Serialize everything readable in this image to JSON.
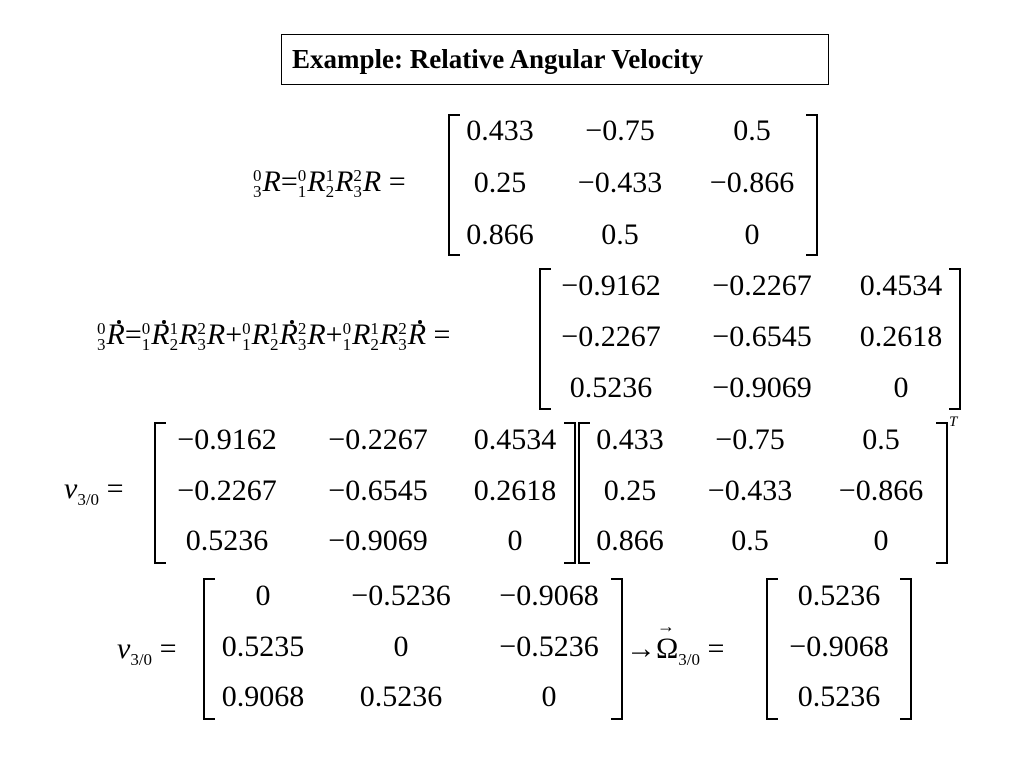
{
  "title": "Example: Relative Angular Velocity",
  "equations": {
    "eq1_lhs": {
      "sym": "R",
      "eq": "=",
      "op": "="
    },
    "eq2_lhs": {
      "sym": "R",
      "plus": "+",
      "eq": "="
    },
    "nu_symbol": "ν",
    "nu_sub": "3/0",
    "omega_symbol": "Ω",
    "omega_sub": "3/0",
    "arrow": "→",
    "transpose": "T"
  },
  "matrices": {
    "R": [
      [
        "0.433",
        "−0.75",
        "0.5"
      ],
      [
        "0.25",
        "−0.433",
        "−0.866"
      ],
      [
        "0.866",
        "0.5",
        "0"
      ]
    ],
    "Rdot": [
      [
        "−0.9162",
        "−0.2267",
        "0.4534"
      ],
      [
        "−0.2267",
        "−0.6545",
        "0.2618"
      ],
      [
        "0.5236",
        "−0.9069",
        "0"
      ]
    ],
    "nu": [
      [
        "0",
        "−0.5236",
        "−0.9068"
      ],
      [
        "0.5235",
        "0",
        "−0.5236"
      ],
      [
        "0.9068",
        "0.5236",
        "0"
      ]
    ],
    "omega": [
      [
        "0.5236"
      ],
      [
        "−0.9068"
      ],
      [
        "0.5236"
      ]
    ]
  }
}
